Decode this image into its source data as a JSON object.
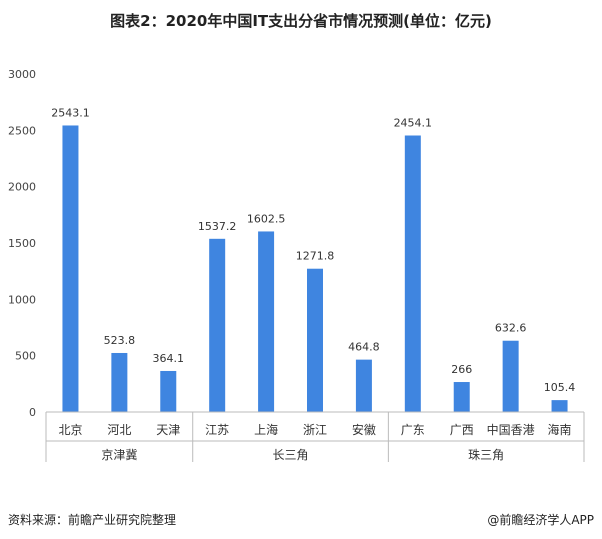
{
  "title": "图表2：2020年中国IT支出分省市情况预测(单位：亿元)",
  "source": "资料来源：前瞻产业研究院整理",
  "brand": "@前瞻经济学人APP",
  "colors": {
    "bar": "#3f85e0",
    "axis": "#bbbbbb"
  },
  "chart_data": {
    "type": "bar",
    "title": "图表2：2020年中国IT支出分省市情况预测(单位：亿元)",
    "xlabel": "",
    "ylabel": "",
    "ylim": [
      0,
      3000
    ],
    "yticks": [
      0,
      500,
      1000,
      1500,
      2000,
      2500,
      3000
    ],
    "grid": false,
    "categories": [
      "北京",
      "河北",
      "天津",
      "江苏",
      "上海",
      "浙江",
      "安徽",
      "广东",
      "广西",
      "中国香港",
      "海南"
    ],
    "values": [
      2543.1,
      523.8,
      364.1,
      1537.2,
      1602.5,
      1271.8,
      464.8,
      2454.1,
      266,
      632.6,
      105.4
    ],
    "value_labels": [
      "2543.1",
      "523.8",
      "364.1",
      "1537.2",
      "1602.5",
      "1271.8",
      "464.8",
      "2454.1",
      "266",
      "632.6",
      "105.4"
    ],
    "groups": [
      {
        "name": "京津冀",
        "count": 3
      },
      {
        "name": "长三角",
        "count": 4
      },
      {
        "name": "珠三角",
        "count": 4
      }
    ]
  }
}
